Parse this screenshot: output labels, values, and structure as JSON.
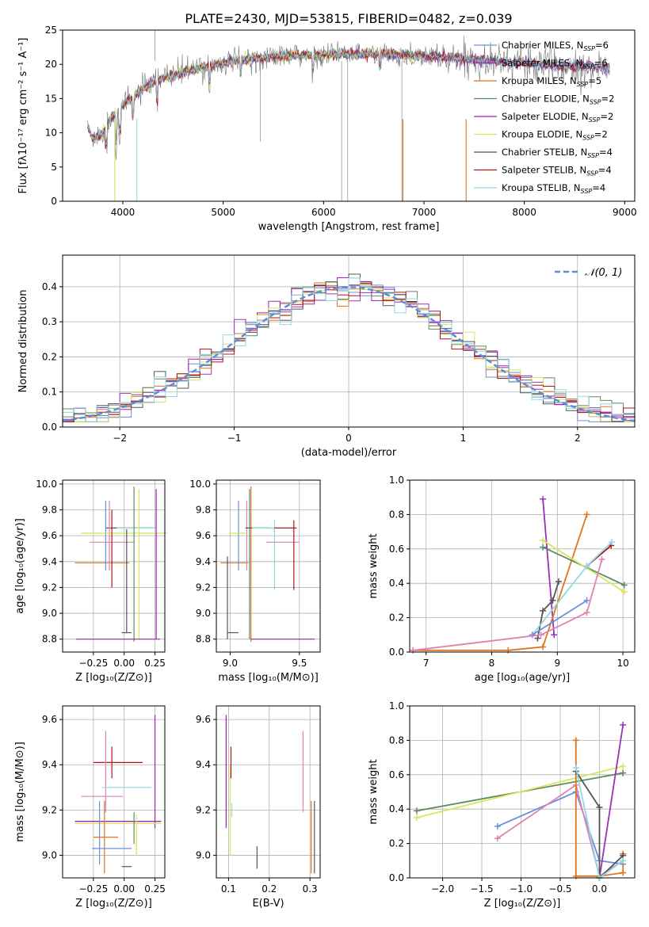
{
  "figure": {
    "title": "PLATE=2430, MJD=53815, FIBERID=0482, z=0.039"
  },
  "colors": {
    "axis": "#000000",
    "grid": "#b0b0b0",
    "series": [
      "#6a8fdc",
      "#9a32b8",
      "#e0751f",
      "#5e8a5e",
      "#a021b4",
      "#d8e65a",
      "#555555",
      "#b3141c",
      "#8fd9e0",
      "#e081b5"
    ]
  },
  "chart_data": [
    {
      "id": "spectrum",
      "type": "line",
      "xlabel": "wavelength [Angstrom, rest frame]",
      "ylabel": "Flux [fλ10⁻¹⁷ erg cm⁻² s⁻¹ A⁻¹]",
      "xlim": [
        3400,
        9100
      ],
      "ylim": [
        0,
        25
      ],
      "xticks": [
        4000,
        5000,
        6000,
        7000,
        8000,
        9000
      ],
      "yticks": [
        0,
        5,
        10,
        15,
        20,
        25
      ],
      "legend_position": "top-right",
      "grid": false,
      "continuum_x": [
        3650,
        3700,
        3800,
        3900,
        4000,
        4100,
        4200,
        4300,
        4400,
        4600,
        4800,
        5000,
        5200,
        5400,
        5600,
        5800,
        6000,
        6200,
        6400,
        6600,
        6800,
        7000,
        7200,
        7400,
        7600,
        7800,
        8000,
        8200,
        8400,
        8600,
        8800
      ],
      "continuum_y": [
        11,
        9,
        10,
        12.5,
        14,
        15,
        16.5,
        17.2,
        18,
        18.8,
        19.6,
        20.2,
        20.7,
        21.0,
        21.2,
        21.3,
        21.4,
        21.5,
        21.5,
        21.5,
        21.3,
        21.2,
        21.0,
        20.8,
        20.6,
        20.4,
        20.2,
        20.0,
        19.8,
        19.8,
        19.5
      ],
      "series": [
        {
          "name": "Chabrier MILES, N",
          "sub": "SSP",
          "suffix": "=6",
          "color": "#6a8fdc"
        },
        {
          "name": "Salpeter MILES, N",
          "sub": "SSP",
          "suffix": "=6",
          "color": "#9a32b8"
        },
        {
          "name": "Kroupa MILES, N",
          "sub": "SSP",
          "suffix": "=5",
          "color": "#e0751f"
        },
        {
          "name": "Chabrier ELODIE, N",
          "sub": "SSP",
          "suffix": "=2",
          "color": "#5e8a5e"
        },
        {
          "name": "Salpeter ELODIE, N",
          "sub": "SSP",
          "suffix": "=2",
          "color": "#a021b4"
        },
        {
          "name": "Kroupa ELODIE, N",
          "sub": "SSP",
          "suffix": "=2",
          "color": "#d8e65a"
        },
        {
          "name": "Chabrier STELIB, N",
          "sub": "SSP",
          "suffix": "=4",
          "color": "#555555"
        },
        {
          "name": "Salpeter STELIB, N",
          "sub": "SSP",
          "suffix": "=4",
          "color": "#b3141c"
        },
        {
          "name": "Kroupa STELIB, N",
          "sub": "SSP",
          "suffix": "=4",
          "color": "#8fd9e0"
        }
      ]
    },
    {
      "id": "residuals",
      "type": "line",
      "xlabel": "(data-model)/error",
      "ylabel": "Normed distribution",
      "xlim": [
        -2.5,
        2.5
      ],
      "ylim": [
        0,
        0.49
      ],
      "xticks": [
        -2,
        -1,
        0,
        1,
        2
      ],
      "ytick_values": [
        0,
        0.1,
        0.2,
        0.3,
        0.4
      ],
      "ytick_labels": [
        "0.0",
        "0.1",
        "0.2",
        "0.3",
        "0.4"
      ],
      "xtick_labels": [
        "−2",
        "−1",
        "0",
        "1",
        "2"
      ],
      "grid": true,
      "legend_position": "top-right",
      "gaussian_label": "𝒩(0, 1)",
      "gaussian_color": "#5b8ed8"
    },
    {
      "id": "age-vs-Z",
      "type": "scatter",
      "xlabel": "Z [log₁₀(Z/Z⊙)]",
      "ylabel": "age  [log₁₀(age/yr)]",
      "xlim": [
        -0.5,
        0.33
      ],
      "ylim": [
        8.7,
        10.03
      ],
      "xtick_values": [
        -0.25,
        0,
        0.25
      ],
      "xtick_labels": [
        "−0.25",
        "0.00",
        "0.25"
      ],
      "yticks": [
        8.8,
        9.0,
        9.2,
        9.4,
        9.6,
        9.8,
        10.0
      ],
      "ytick_labels": [
        "8.8",
        "9.0",
        "9.2",
        "9.4",
        "9.6",
        "9.8",
        "10.0"
      ],
      "grid": true,
      "points": [
        {
          "x": 0.05,
          "xerr": 0.2,
          "y": 9.66,
          "yerr": 0.0,
          "color": "#555555"
        },
        {
          "x": -0.18,
          "xerr": 0.22,
          "y": 9.39,
          "yerr": 0.0,
          "color": "#e0751f"
        },
        {
          "x": -0.15,
          "xerr": 0.0,
          "y": 9.6,
          "yerr": 0.27,
          "color": "#6a8fdc"
        },
        {
          "x": -0.12,
          "xerr": 0.0,
          "y": 9.6,
          "yerr": 0.27,
          "color": "#e081b5"
        },
        {
          "x": -0.1,
          "xerr": 0.18,
          "y": 9.55,
          "yerr": 0.0,
          "color": "#e081b5"
        },
        {
          "x": 0.1,
          "xerr": 0.16,
          "y": 9.66,
          "yerr": 0.0,
          "color": "#8fd9e0"
        },
        {
          "x": 0.0,
          "xerr": 0.35,
          "y": 9.62,
          "yerr": 0.0,
          "color": "#d8e65a"
        },
        {
          "x": -0.1,
          "xerr": 0.0,
          "y": 9.5,
          "yerr": 0.3,
          "color": "#b3141c"
        },
        {
          "x": 0.08,
          "xerr": 0.0,
          "y": 9.38,
          "yerr": 0.6,
          "color": "#5e8a5e"
        },
        {
          "x": 0.12,
          "xerr": 0.0,
          "y": 9.38,
          "yerr": 0.58,
          "color": "#d8e65a"
        },
        {
          "x": 0.26,
          "xerr": 0.0,
          "y": 9.38,
          "yerr": 0.58,
          "color": "#a021b4"
        },
        {
          "x": -0.05,
          "xerr": 0.34,
          "y": 8.8,
          "yerr": 0.0,
          "color": "#a021b4"
        },
        {
          "x": 0.02,
          "xerr": 0.0,
          "y": 9.25,
          "yerr": 0.4,
          "color": "#555555"
        },
        {
          "x": 0.02,
          "xerr": 0.04,
          "y": 8.85,
          "yerr": 0.0,
          "color": "#555555"
        }
      ]
    },
    {
      "id": "age-vs-mass",
      "type": "scatter",
      "xlabel": "mass [log₁₀(M/M⊙)]",
      "xlim": [
        8.9,
        9.65
      ],
      "ylim": [
        8.7,
        10.03
      ],
      "xtick_values": [
        9.0,
        9.5
      ],
      "xtick_labels": [
        "9.0",
        "9.5"
      ],
      "yticks": [
        8.8,
        9.0,
        9.2,
        9.4,
        9.6,
        9.8,
        10.0
      ],
      "ytick_labels": [
        "8.8",
        "9.0",
        "9.2",
        "9.4",
        "9.6",
        "9.8",
        "10.0"
      ],
      "grid": true,
      "points": [
        {
          "x": 9.03,
          "xerr": 0.1,
          "y": 9.39,
          "yerr": 0.0,
          "color": "#e0751f"
        },
        {
          "x": 9.06,
          "xerr": 0.0,
          "y": 9.6,
          "yerr": 0.27,
          "color": "#6a8fdc"
        },
        {
          "x": 9.12,
          "xerr": 0.0,
          "y": 9.6,
          "yerr": 0.27,
          "color": "#e081b5"
        },
        {
          "x": 9.15,
          "xerr": 0.0,
          "y": 9.38,
          "yerr": 0.6,
          "color": "#e0751f"
        },
        {
          "x": 9.14,
          "xerr": 0.0,
          "y": 9.38,
          "yerr": 0.58,
          "color": "#5e8a5e"
        },
        {
          "x": 9.2,
          "xerr": 0.09,
          "y": 9.66,
          "yerr": 0.0,
          "color": "#555555"
        },
        {
          "x": 9.25,
          "xerr": 0.09,
          "y": 9.66,
          "yerr": 0.0,
          "color": "#8fd9e0"
        },
        {
          "x": 9.05,
          "xerr": 0.06,
          "y": 9.62,
          "yerr": 0.0,
          "color": "#d8e65a"
        },
        {
          "x": 9.32,
          "xerr": 0.0,
          "y": 9.45,
          "yerr": 0.27,
          "color": "#8fd9e0"
        },
        {
          "x": 9.38,
          "xerr": 0.12,
          "y": 9.55,
          "yerr": 0.0,
          "color": "#e081b5"
        },
        {
          "x": 9.46,
          "xerr": 0.0,
          "y": 9.45,
          "yerr": 0.27,
          "color": "#b3141c"
        },
        {
          "x": 9.4,
          "xerr": 0.08,
          "y": 9.66,
          "yerr": 0.0,
          "color": "#b3141c"
        },
        {
          "x": 9.38,
          "xerr": 0.23,
          "y": 8.8,
          "yerr": 0.0,
          "color": "#a021b4"
        },
        {
          "x": 8.98,
          "xerr": 0.0,
          "y": 9.12,
          "yerr": 0.32,
          "color": "#555555"
        },
        {
          "x": 9.02,
          "xerr": 0.04,
          "y": 8.85,
          "yerr": 0.0,
          "color": "#555555"
        }
      ]
    },
    {
      "id": "weight-vs-age",
      "type": "line",
      "xlabel": "age  [log₁₀(age/yr)]",
      "ylabel": "mass weight",
      "xlim": [
        6.75,
        10.18
      ],
      "ylim": [
        0,
        1.0
      ],
      "xticks": [
        7,
        8,
        9,
        10
      ],
      "ytick_values": [
        0,
        0.2,
        0.4,
        0.6,
        0.8,
        1.0
      ],
      "ytick_labels": [
        "0.0",
        "0.2",
        "0.4",
        "0.6",
        "0.8",
        "1.0"
      ],
      "grid": true,
      "series": [
        {
          "color": "#9a32b8",
          "x": [
            8.78,
            8.95
          ],
          "y": [
            0.89,
            0.1
          ]
        },
        {
          "color": "#e0751f",
          "x": [
            6.8,
            8.25,
            8.78,
            9.45
          ],
          "y": [
            0.01,
            0.01,
            0.03,
            0.8
          ]
        },
        {
          "color": "#5e8a5e",
          "x": [
            8.78,
            10.02
          ],
          "y": [
            0.61,
            0.39
          ]
        },
        {
          "color": "#d8e65a",
          "x": [
            8.78,
            10.02
          ],
          "y": [
            0.65,
            0.35
          ]
        },
        {
          "color": "#555555",
          "x": [
            8.7,
            8.78,
            8.93,
            9.02
          ],
          "y": [
            0.08,
            0.24,
            0.3,
            0.41
          ]
        },
        {
          "color": "#b3141c",
          "x": [
            9.45,
            9.82
          ],
          "y": [
            0.5,
            0.62
          ]
        },
        {
          "color": "#8fd9e0",
          "x": [
            8.62,
            9.45,
            9.83
          ],
          "y": [
            0.1,
            0.5,
            0.64
          ]
        },
        {
          "color": "#6a8fdc",
          "x": [
            8.62,
            9.45
          ],
          "y": [
            0.1,
            0.3
          ]
        },
        {
          "color": "#e081b5",
          "x": [
            6.8,
            8.75,
            9.45,
            9.68
          ],
          "y": [
            0.01,
            0.1,
            0.23,
            0.54
          ]
        }
      ]
    },
    {
      "id": "mass-vs-Z",
      "type": "scatter",
      "xlabel": "Z [log₁₀(Z/Z⊙)]",
      "ylabel": "mass [log₁₀(M/M⊙)]",
      "xlim": [
        -0.5,
        0.33
      ],
      "ylim": [
        8.9,
        9.66
      ],
      "xtick_values": [
        -0.25,
        0,
        0.25
      ],
      "xtick_labels": [
        "−0.25",
        "0.00",
        "0.25"
      ],
      "yticks": [
        9.0,
        9.2,
        9.4,
        9.6
      ],
      "ytick_labels": [
        "9.0",
        "9.2",
        "9.4",
        "9.6"
      ],
      "grid": true,
      "points": [
        {
          "x": -0.05,
          "xerr": 0.2,
          "y": 9.41,
          "yerr": 0.0,
          "color": "#b3141c"
        },
        {
          "x": -0.1,
          "xerr": 0.0,
          "y": 9.41,
          "yerr": 0.07,
          "color": "#b3141c"
        },
        {
          "x": -0.15,
          "xerr": 0.0,
          "y": 9.37,
          "yerr": 0.18,
          "color": "#e081b5"
        },
        {
          "x": 0.02,
          "xerr": 0.2,
          "y": 9.3,
          "yerr": 0.0,
          "color": "#8fd9e0"
        },
        {
          "x": -0.18,
          "xerr": 0.17,
          "y": 9.26,
          "yerr": 0.0,
          "color": "#e081b5"
        },
        {
          "x": -0.05,
          "xerr": 0.35,
          "y": 9.15,
          "yerr": 0.0,
          "color": "#555555"
        },
        {
          "x": -0.05,
          "xerr": 0.35,
          "y": 9.15,
          "yerr": 0.0,
          "color": "#a021b4"
        },
        {
          "x": 0.25,
          "xerr": 0.0,
          "y": 9.37,
          "yerr": 0.25,
          "color": "#a021b4"
        },
        {
          "x": -0.05,
          "xerr": 0.35,
          "y": 9.14,
          "yerr": 0.0,
          "color": "#d8e65a"
        },
        {
          "x": 0.1,
          "xerr": 0.0,
          "y": 9.1,
          "yerr": 0.08,
          "color": "#d8e65a"
        },
        {
          "x": 0.08,
          "xerr": 0.0,
          "y": 9.12,
          "yerr": 0.07,
          "color": "#5e8a5e"
        },
        {
          "x": -0.2,
          "xerr": 0.0,
          "y": 9.1,
          "yerr": 0.14,
          "color": "#6a8fdc"
        },
        {
          "x": -0.16,
          "xerr": 0.0,
          "y": 9.08,
          "yerr": 0.16,
          "color": "#e0751f"
        },
        {
          "x": -0.15,
          "xerr": 0.1,
          "y": 9.08,
          "yerr": 0.0,
          "color": "#e0751f"
        },
        {
          "x": -0.1,
          "xerr": 0.16,
          "y": 9.03,
          "yerr": 0.0,
          "color": "#6a8fdc"
        },
        {
          "x": 0.02,
          "xerr": 0.04,
          "y": 8.95,
          "yerr": 0.0,
          "color": "#555555"
        },
        {
          "x": 0.1,
          "xerr": 0.0,
          "y": 9.05,
          "yerr": 0.05,
          "color": "#d8e65a"
        }
      ]
    },
    {
      "id": "mass-vs-EBV",
      "type": "scatter",
      "xlabel": "E(B-V)",
      "xlim": [
        0.07,
        0.325
      ],
      "ylim": [
        8.9,
        9.66
      ],
      "xtick_values": [
        0.1,
        0.2,
        0.3
      ],
      "xtick_labels": [
        "0.1",
        "0.2",
        "0.3"
      ],
      "yticks": [
        9.0,
        9.2,
        9.4,
        9.6
      ],
      "ytick_labels": [
        "9.0",
        "9.2",
        "9.4",
        "9.6"
      ],
      "grid": true,
      "points": [
        {
          "x": 0.094,
          "xerr": 0.0,
          "y": 9.37,
          "yerr": 0.25,
          "color": "#a021b4"
        },
        {
          "x": 0.104,
          "xerr": 0.0,
          "y": 9.2,
          "yerr": 0.2,
          "color": "#d8e65a"
        },
        {
          "x": 0.106,
          "xerr": 0.0,
          "y": 9.41,
          "yerr": 0.07,
          "color": "#b3141c"
        },
        {
          "x": 0.108,
          "xerr": 0.0,
          "y": 9.2,
          "yerr": 0.03,
          "color": "#8fd9e0"
        },
        {
          "x": 0.17,
          "xerr": 0.0,
          "y": 8.99,
          "yerr": 0.05,
          "color": "#555555"
        },
        {
          "x": 0.283,
          "xerr": 0.0,
          "y": 9.37,
          "yerr": 0.18,
          "color": "#e081b5"
        },
        {
          "x": 0.303,
          "xerr": 0.0,
          "y": 9.08,
          "yerr": 0.16,
          "color": "#e0751f"
        },
        {
          "x": 0.311,
          "xerr": 0.0,
          "y": 9.08,
          "yerr": 0.16,
          "color": "#555555"
        }
      ]
    },
    {
      "id": "weight-vs-Z",
      "type": "line",
      "xlabel": "Z [log₁₀(Z/Z⊙)]",
      "ylabel": "mass weight",
      "xlim": [
        -2.42,
        0.45
      ],
      "ylim": [
        0,
        1.0
      ],
      "xtick_values": [
        -2.0,
        -1.5,
        -1.0,
        -0.5,
        0.0
      ],
      "xtick_labels": [
        "−2.0",
        "−1.5",
        "−1.0",
        "−0.5",
        "0.0"
      ],
      "ytick_values": [
        0,
        0.2,
        0.4,
        0.6,
        0.8,
        1.0
      ],
      "ytick_labels": [
        "0.0",
        "0.2",
        "0.4",
        "0.6",
        "0.8",
        "1.0"
      ],
      "grid": true,
      "series": [
        {
          "color": "#5e8a5e",
          "x": [
            -2.33,
            0.3
          ],
          "y": [
            0.39,
            0.61
          ]
        },
        {
          "color": "#d8e65a",
          "x": [
            -2.33,
            0.3
          ],
          "y": [
            0.35,
            0.65
          ]
        },
        {
          "color": "#6a8fdc",
          "x": [
            -1.3,
            -0.3,
            0.0,
            0.3
          ],
          "y": [
            0.3,
            0.5,
            0.1,
            0.08
          ]
        },
        {
          "color": "#e081b5",
          "x": [
            -1.3,
            -0.3,
            0.0,
            0.3
          ],
          "y": [
            0.23,
            0.54,
            0.01,
            0.1
          ]
        },
        {
          "color": "#e0751f",
          "x": [
            -0.3,
            -0.3,
            0.0,
            0.3,
            0.3
          ],
          "y": [
            0.8,
            0.01,
            0.01,
            0.03,
            0.14
          ]
        },
        {
          "color": "#9a32b8",
          "x": [
            0.0,
            0.3
          ],
          "y": [
            0.0,
            0.89
          ]
        },
        {
          "color": "#555555",
          "x": [
            -0.3,
            0.0,
            0.0,
            0.3
          ],
          "y": [
            0.62,
            0.41,
            0.0,
            0.13
          ]
        },
        {
          "color": "#8fd9e0",
          "x": [
            -0.3,
            0.0,
            0.3
          ],
          "y": [
            0.64,
            0.0,
            0.1
          ]
        }
      ]
    }
  ]
}
